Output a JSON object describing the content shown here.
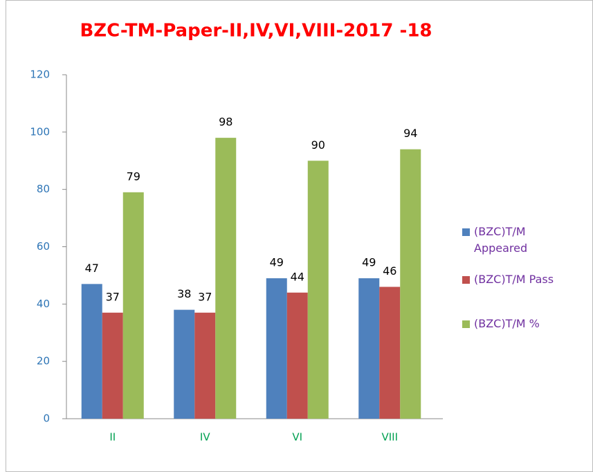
{
  "chart_data": {
    "type": "bar",
    "title": "BZC-TM-Paper-II,IV,VI,VIII-2017 -18",
    "categories": [
      "II",
      "IV",
      "VI",
      "VIII"
    ],
    "series": [
      {
        "name": "(BZC)T/M Appeared",
        "color": "#4f81bd",
        "values": [
          47,
          38,
          49,
          49
        ]
      },
      {
        "name": "(BZC)T/M Pass",
        "color": "#c0504d",
        "values": [
          37,
          37,
          44,
          46
        ]
      },
      {
        "name": "(BZC)T/M %",
        "color": "#9bbb59",
        "values": [
          79,
          98,
          90,
          94
        ]
      }
    ],
    "ylim": [
      0,
      120
    ],
    "yticks": [
      0,
      20,
      40,
      60,
      80,
      100,
      120
    ],
    "grid": false,
    "legend": "right"
  }
}
